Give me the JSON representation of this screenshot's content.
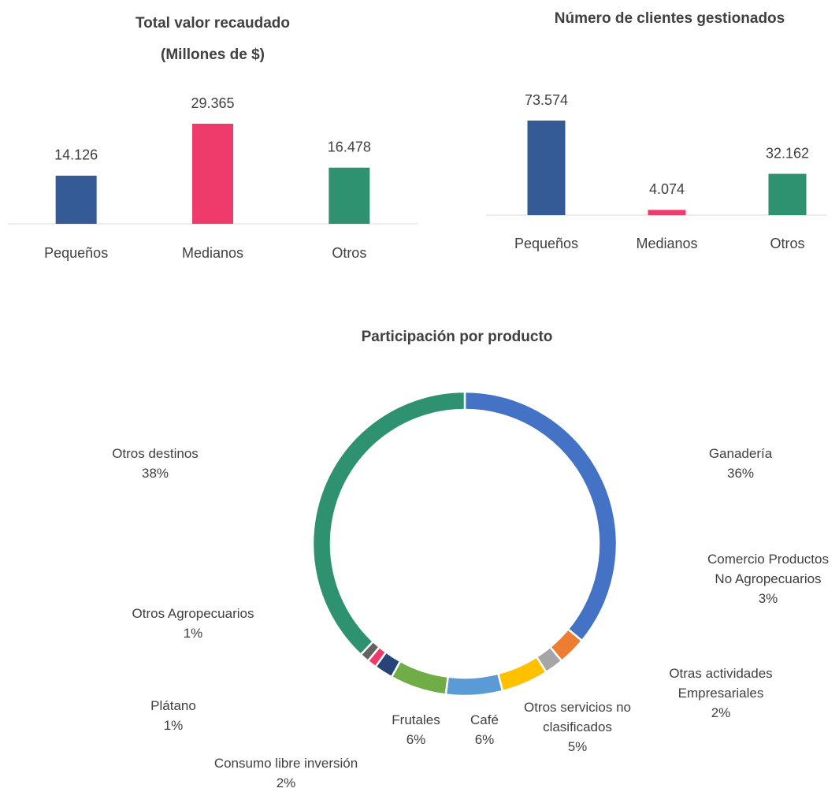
{
  "chart_data": [
    {
      "type": "bar",
      "title": "Total valor recaudado",
      "subtitle": "(Millones de $)",
      "categories": [
        "Pequeños",
        "Medianos",
        "Otros"
      ],
      "values": [
        14126,
        29365,
        16478
      ],
      "value_labels": [
        "14.126",
        "29.365",
        "16.478"
      ],
      "colors": [
        "#345b95",
        "#ef3a6c",
        "#2e9270"
      ]
    },
    {
      "type": "bar",
      "title": "Número de clientes gestionados",
      "categories": [
        "Pequeños",
        "Medianos",
        "Otros"
      ],
      "values": [
        73574,
        4074,
        32162
      ],
      "value_labels": [
        "73.574",
        "4.074",
        "32.162"
      ],
      "colors": [
        "#345b95",
        "#ef3a6c",
        "#2e9270"
      ]
    },
    {
      "type": "donut",
      "title": "Participación por producto",
      "categories": [
        "Ganadería",
        "Comercio Productos No Agropecuarios",
        "Otras actividades Empresariales",
        "Otros servicios no clasificados",
        "Café",
        "Frutales",
        "Consumo libre inversión",
        "Plátano",
        "Otros Agropecuarios",
        "Otros destinos"
      ],
      "values": [
        36,
        3,
        2,
        5,
        6,
        6,
        2,
        1,
        1,
        38
      ],
      "value_labels": [
        "36%",
        "3%",
        "2%",
        "5%",
        "6%",
        "6%",
        "2%",
        "1%",
        "1%",
        "38%"
      ],
      "colors": [
        "#4472c4",
        "#ed7d31",
        "#a5a5a5",
        "#ffc000",
        "#5b9bd5",
        "#70ad47",
        "#264478",
        "#f0386b",
        "#636363",
        "#2e9270"
      ]
    }
  ]
}
